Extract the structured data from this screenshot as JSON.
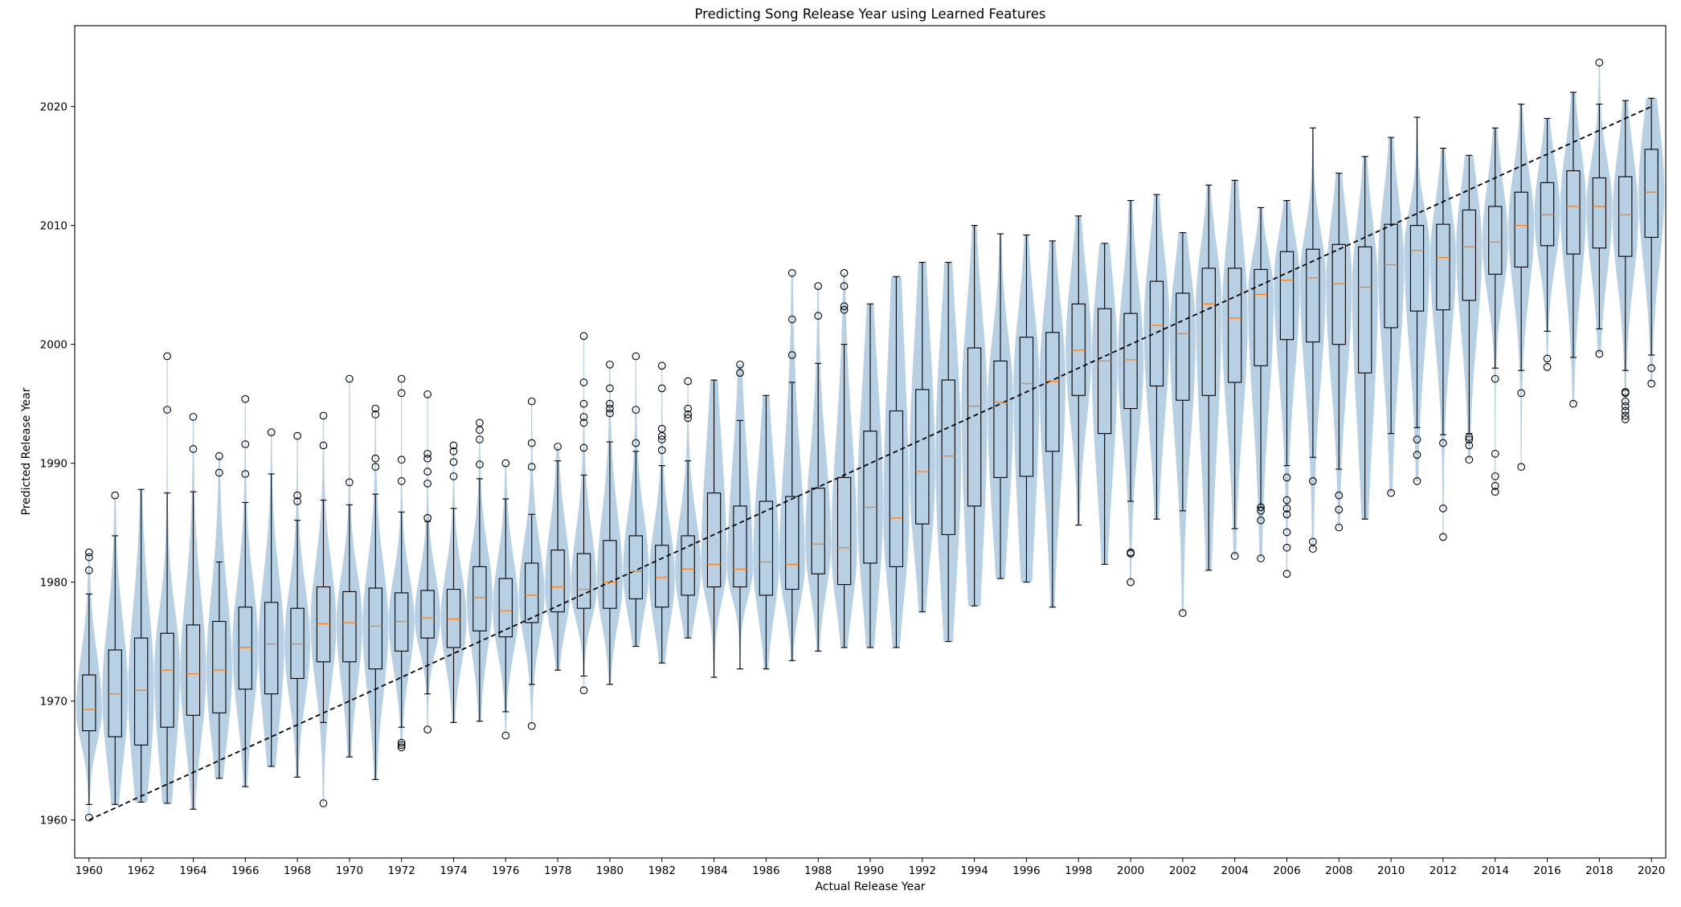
{
  "chart_data": {
    "type": "box-violin",
    "title": "Predicting Song Release Year using Learned Features",
    "xlabel": "Actual Release Year",
    "ylabel": "Predicted Release Year",
    "xlim": [
      1959.45,
      2020.55
    ],
    "ylim": [
      1956.8,
      2026.8
    ],
    "x_ticks": [
      1960,
      1962,
      1964,
      1966,
      1968,
      1970,
      1972,
      1974,
      1976,
      1978,
      1980,
      1982,
      1984,
      1986,
      1988,
      1990,
      1992,
      1994,
      1996,
      1998,
      2000,
      2002,
      2004,
      2006,
      2008,
      2010,
      2012,
      2014,
      2016,
      2018,
      2020
    ],
    "y_ticks": [
      1960,
      1970,
      1980,
      1990,
      2000,
      2010,
      2020
    ],
    "grid": false,
    "reference_line": {
      "from": [
        1960,
        1960
      ],
      "to": [
        2020,
        2020
      ],
      "style": "dashed",
      "color": "#000000"
    },
    "colors": {
      "violin": "#b8d0e4",
      "box": "#000000",
      "median": "#ff7f0e",
      "reference": "#000000"
    },
    "series": [
      {
        "year": 1960,
        "whisker_low": 1961.3,
        "q1": 1967.5,
        "median": 1969.3,
        "q3": 1972.2,
        "whisker_high": 1979.0,
        "outliers": [
          1960.2,
          1981.0,
          1982.1,
          1982.5
        ]
      },
      {
        "year": 1961,
        "whisker_low": 1961.3,
        "q1": 1967.0,
        "median": 1970.6,
        "q3": 1974.3,
        "whisker_high": 1983.9,
        "outliers": [
          1987.3
        ]
      },
      {
        "year": 1962,
        "whisker_low": 1961.5,
        "q1": 1966.3,
        "median": 1970.9,
        "q3": 1975.3,
        "whisker_high": 1987.8,
        "outliers": []
      },
      {
        "year": 1963,
        "whisker_low": 1961.4,
        "q1": 1967.8,
        "median": 1972.6,
        "q3": 1975.7,
        "whisker_high": 1987.5,
        "outliers": [
          1994.5,
          1999.0
        ]
      },
      {
        "year": 1964,
        "whisker_low": 1960.9,
        "q1": 1968.8,
        "median": 1972.3,
        "q3": 1976.4,
        "whisker_high": 1987.6,
        "outliers": [
          1991.2,
          1993.9
        ]
      },
      {
        "year": 1965,
        "whisker_low": 1963.5,
        "q1": 1969.0,
        "median": 1972.6,
        "q3": 1976.7,
        "whisker_high": 1981.7,
        "outliers": [
          1989.2,
          1990.6
        ]
      },
      {
        "year": 1966,
        "whisker_low": 1962.8,
        "q1": 1971.0,
        "median": 1974.5,
        "q3": 1977.9,
        "whisker_high": 1986.7,
        "outliers": [
          1989.1,
          1991.6,
          1995.4
        ]
      },
      {
        "year": 1967,
        "whisker_low": 1964.5,
        "q1": 1970.6,
        "median": 1974.8,
        "q3": 1978.3,
        "whisker_high": 1989.1,
        "outliers": [
          1992.6
        ]
      },
      {
        "year": 1968,
        "whisker_low": 1963.6,
        "q1": 1971.9,
        "median": 1974.8,
        "q3": 1977.8,
        "whisker_high": 1985.2,
        "outliers": [
          1986.8,
          1987.3,
          1992.3
        ]
      },
      {
        "year": 1969,
        "whisker_low": 1968.2,
        "q1": 1973.3,
        "median": 1976.5,
        "q3": 1979.6,
        "whisker_high": 1986.9,
        "outliers": [
          1961.4,
          1991.5,
          1994.0
        ]
      },
      {
        "year": 1970,
        "whisker_low": 1965.3,
        "q1": 1973.3,
        "median": 1976.6,
        "q3": 1979.2,
        "whisker_high": 1986.5,
        "outliers": [
          1988.4,
          1997.1
        ]
      },
      {
        "year": 1971,
        "whisker_low": 1963.4,
        "q1": 1972.7,
        "median": 1976.3,
        "q3": 1979.5,
        "whisker_high": 1987.4,
        "outliers": [
          1989.7,
          1990.4,
          1994.1,
          1994.6
        ]
      },
      {
        "year": 1972,
        "whisker_low": 1967.8,
        "q1": 1974.2,
        "median": 1976.7,
        "q3": 1979.1,
        "whisker_high": 1985.9,
        "outliers": [
          1966.1,
          1966.3,
          1966.5,
          1988.5,
          1990.3,
          1995.9,
          1997.1
        ]
      },
      {
        "year": 1973,
        "whisker_low": 1970.6,
        "q1": 1975.3,
        "median": 1977.0,
        "q3": 1979.3,
        "whisker_high": 1985.1,
        "outliers": [
          1967.6,
          1985.4,
          1988.3,
          1989.3,
          1990.4,
          1990.8,
          1995.8
        ]
      },
      {
        "year": 1974,
        "whisker_low": 1968.2,
        "q1": 1974.5,
        "median": 1976.9,
        "q3": 1979.4,
        "whisker_high": 1986.2,
        "outliers": [
          1988.9,
          1990.1,
          1991.0,
          1991.5
        ]
      },
      {
        "year": 1975,
        "whisker_low": 1968.3,
        "q1": 1975.9,
        "median": 1978.7,
        "q3": 1981.3,
        "whisker_high": 1988.7,
        "outliers": [
          1989.9,
          1992.0,
          1992.8,
          1993.4
        ]
      },
      {
        "year": 1976,
        "whisker_low": 1969.1,
        "q1": 1975.4,
        "median": 1977.6,
        "q3": 1980.3,
        "whisker_high": 1987.0,
        "outliers": [
          1967.1,
          1990.0
        ]
      },
      {
        "year": 1977,
        "whisker_low": 1971.4,
        "q1": 1976.6,
        "median": 1978.9,
        "q3": 1981.6,
        "whisker_high": 1985.7,
        "outliers": [
          1967.9,
          1989.7,
          1991.7,
          1995.2
        ]
      },
      {
        "year": 1978,
        "whisker_low": 1972.6,
        "q1": 1977.5,
        "median": 1979.6,
        "q3": 1982.7,
        "whisker_high": 1990.2,
        "outliers": [
          1991.4
        ]
      },
      {
        "year": 1979,
        "whisker_low": 1972.1,
        "q1": 1977.8,
        "median": 1979.4,
        "q3": 1982.4,
        "whisker_high": 1989.0,
        "outliers": [
          1970.9,
          1991.3,
          1993.4,
          1993.9,
          1995.0,
          1996.8,
          2000.7
        ]
      },
      {
        "year": 1980,
        "whisker_low": 1971.4,
        "q1": 1977.8,
        "median": 1980.0,
        "q3": 1983.5,
        "whisker_high": 1991.8,
        "outliers": [
          1994.2,
          1994.6,
          1995.0,
          1996.3,
          1998.3
        ]
      },
      {
        "year": 1981,
        "whisker_low": 1974.6,
        "q1": 1978.6,
        "median": 1980.9,
        "q3": 1983.9,
        "whisker_high": 1991.0,
        "outliers": [
          1991.7,
          1994.5,
          1999.0
        ]
      },
      {
        "year": 1982,
        "whisker_low": 1973.2,
        "q1": 1977.9,
        "median": 1980.4,
        "q3": 1983.1,
        "whisker_high": 1989.8,
        "outliers": [
          1991.1,
          1992.0,
          1992.3,
          1992.9,
          1996.3,
          1998.2
        ]
      },
      {
        "year": 1983,
        "whisker_low": 1975.3,
        "q1": 1978.9,
        "median": 1981.1,
        "q3": 1983.9,
        "whisker_high": 1990.2,
        "outliers": [
          1993.8,
          1994.1,
          1994.6,
          1996.9
        ]
      },
      {
        "year": 1984,
        "whisker_low": 1972.0,
        "q1": 1979.6,
        "median": 1981.5,
        "q3": 1987.5,
        "whisker_high": 1997.0,
        "outliers": []
      },
      {
        "year": 1985,
        "whisker_low": 1972.7,
        "q1": 1979.6,
        "median": 1981.1,
        "q3": 1986.4,
        "whisker_high": 1993.6,
        "outliers": [
          1997.6,
          1998.3
        ]
      },
      {
        "year": 1986,
        "whisker_low": 1972.7,
        "q1": 1978.9,
        "median": 1981.7,
        "q3": 1986.8,
        "whisker_high": 1995.7,
        "outliers": []
      },
      {
        "year": 1987,
        "whisker_low": 1973.4,
        "q1": 1979.4,
        "median": 1981.5,
        "q3": 1987.2,
        "whisker_high": 1996.8,
        "outliers": [
          1999.1,
          2002.1,
          2006.0
        ]
      },
      {
        "year": 1988,
        "whisker_low": 1974.2,
        "q1": 1980.7,
        "median": 1983.2,
        "q3": 1987.9,
        "whisker_high": 1998.4,
        "outliers": [
          2002.4,
          2004.9
        ]
      },
      {
        "year": 1989,
        "whisker_low": 1974.5,
        "q1": 1979.8,
        "median": 1982.9,
        "q3": 1988.8,
        "whisker_high": 2000.0,
        "outliers": [
          2002.9,
          2003.2,
          2004.9,
          2006.0
        ]
      },
      {
        "year": 1990,
        "whisker_low": 1974.5,
        "q1": 1981.6,
        "median": 1986.3,
        "q3": 1992.7,
        "whisker_high": 2003.4,
        "outliers": []
      },
      {
        "year": 1991,
        "whisker_low": 1974.5,
        "q1": 1981.3,
        "median": 1985.4,
        "q3": 1994.4,
        "whisker_high": 2005.7,
        "outliers": []
      },
      {
        "year": 1992,
        "whisker_low": 1977.5,
        "q1": 1984.9,
        "median": 1989.3,
        "q3": 1996.2,
        "whisker_high": 2006.9,
        "outliers": []
      },
      {
        "year": 1993,
        "whisker_low": 1975.0,
        "q1": 1984.0,
        "median": 1990.6,
        "q3": 1997.0,
        "whisker_high": 2006.9,
        "outliers": []
      },
      {
        "year": 1994,
        "whisker_low": 1978.0,
        "q1": 1986.4,
        "median": 1994.8,
        "q3": 1999.7,
        "whisker_high": 2010.0,
        "outliers": []
      },
      {
        "year": 1995,
        "whisker_low": 1980.3,
        "q1": 1988.8,
        "median": 1995.1,
        "q3": 1998.6,
        "whisker_high": 2009.3,
        "outliers": []
      },
      {
        "year": 1996,
        "whisker_low": 1980.0,
        "q1": 1988.9,
        "median": 1996.7,
        "q3": 2000.6,
        "whisker_high": 2009.2,
        "outliers": []
      },
      {
        "year": 1997,
        "whisker_low": 1977.9,
        "q1": 1991.0,
        "median": 1996.9,
        "q3": 2001.0,
        "whisker_high": 2008.7,
        "outliers": []
      },
      {
        "year": 1998,
        "whisker_low": 1984.8,
        "q1": 1995.7,
        "median": 1999.5,
        "q3": 2003.4,
        "whisker_high": 2010.8,
        "outliers": []
      },
      {
        "year": 1999,
        "whisker_low": 1981.5,
        "q1": 1992.5,
        "median": 1998.6,
        "q3": 2003.0,
        "whisker_high": 2008.5,
        "outliers": []
      },
      {
        "year": 2000,
        "whisker_low": 1986.8,
        "q1": 1994.6,
        "median": 1998.7,
        "q3": 2002.6,
        "whisker_high": 2012.1,
        "outliers": [
          1980.0,
          1982.4,
          1982.5
        ]
      },
      {
        "year": 2001,
        "whisker_low": 1985.3,
        "q1": 1996.5,
        "median": 2001.6,
        "q3": 2005.3,
        "whisker_high": 2012.6,
        "outliers": []
      },
      {
        "year": 2002,
        "whisker_low": 1986.0,
        "q1": 1995.3,
        "median": 2000.9,
        "q3": 2004.3,
        "whisker_high": 2009.4,
        "outliers": [
          1977.4
        ]
      },
      {
        "year": 2003,
        "whisker_low": 1981.0,
        "q1": 1995.7,
        "median": 2003.4,
        "q3": 2006.4,
        "whisker_high": 2013.4,
        "outliers": []
      },
      {
        "year": 2004,
        "whisker_low": 1984.5,
        "q1": 1996.8,
        "median": 2002.2,
        "q3": 2006.4,
        "whisker_high": 2013.8,
        "outliers": [
          1982.2
        ]
      },
      {
        "year": 2005,
        "whisker_low": 1986.3,
        "q1": 1998.2,
        "median": 2004.2,
        "q3": 2006.3,
        "whisker_high": 2011.5,
        "outliers": [
          1982.0,
          1985.2,
          1986.0,
          1986.3
        ]
      },
      {
        "year": 2006,
        "whisker_low": 1989.8,
        "q1": 2000.4,
        "median": 2005.4,
        "q3": 2007.8,
        "whisker_high": 2012.1,
        "outliers": [
          1980.7,
          1982.9,
          1984.2,
          1985.7,
          1986.2,
          1986.9,
          1988.8
        ]
      },
      {
        "year": 2007,
        "whisker_low": 1990.5,
        "q1": 2000.2,
        "median": 2005.6,
        "q3": 2008.0,
        "whisker_high": 2018.2,
        "outliers": [
          1982.8,
          1983.4,
          1988.5
        ]
      },
      {
        "year": 2008,
        "whisker_low": 1989.5,
        "q1": 2000.0,
        "median": 2005.1,
        "q3": 2008.4,
        "whisker_high": 2014.4,
        "outliers": [
          1984.6,
          1986.1,
          1987.3
        ]
      },
      {
        "year": 2009,
        "whisker_low": 1985.3,
        "q1": 1997.6,
        "median": 2004.8,
        "q3": 2008.2,
        "whisker_high": 2015.8,
        "outliers": []
      },
      {
        "year": 2010,
        "whisker_low": 1992.5,
        "q1": 2001.4,
        "median": 2006.7,
        "q3": 2010.1,
        "whisker_high": 2017.4,
        "outliers": [
          1987.5
        ]
      },
      {
        "year": 2011,
        "whisker_low": 1993.0,
        "q1": 2002.8,
        "median": 2007.9,
        "q3": 2010.0,
        "whisker_high": 2019.1,
        "outliers": [
          1988.5,
          1990.7,
          1992.0
        ]
      },
      {
        "year": 2012,
        "whisker_low": 1992.4,
        "q1": 2002.9,
        "median": 2007.3,
        "q3": 2010.1,
        "whisker_high": 2016.5,
        "outliers": [
          1983.8,
          1986.2,
          1991.7
        ]
      },
      {
        "year": 2013,
        "whisker_low": 1992.5,
        "q1": 2003.7,
        "median": 2008.2,
        "q3": 2011.3,
        "whisker_high": 2015.9,
        "outliers": [
          1990.3,
          1991.5,
          1992.0,
          1992.2
        ]
      },
      {
        "year": 2014,
        "whisker_low": 1998.0,
        "q1": 2005.9,
        "median": 2008.6,
        "q3": 2011.6,
        "whisker_high": 2018.2,
        "outliers": [
          1987.6,
          1988.1,
          1988.9,
          1990.8,
          1997.1
        ]
      },
      {
        "year": 2015,
        "whisker_low": 1997.8,
        "q1": 2006.5,
        "median": 2010.0,
        "q3": 2012.8,
        "whisker_high": 2020.2,
        "outliers": [
          1989.7,
          1995.9
        ]
      },
      {
        "year": 2016,
        "whisker_low": 2001.1,
        "q1": 2008.3,
        "median": 2010.9,
        "q3": 2013.6,
        "whisker_high": 2019.0,
        "outliers": [
          1998.1,
          1998.8
        ]
      },
      {
        "year": 2017,
        "whisker_low": 1998.9,
        "q1": 2007.6,
        "median": 2011.6,
        "q3": 2014.6,
        "whisker_high": 2021.2,
        "outliers": [
          1995.0
        ]
      },
      {
        "year": 2018,
        "whisker_low": 2001.3,
        "q1": 2008.1,
        "median": 2011.6,
        "q3": 2014.0,
        "whisker_high": 2020.2,
        "outliers": [
          1999.2,
          2023.7
        ]
      },
      {
        "year": 2019,
        "whisker_low": 1997.8,
        "q1": 2007.4,
        "median": 2010.9,
        "q3": 2014.1,
        "whisker_high": 2020.5,
        "outliers": [
          1993.7,
          1994.0,
          1994.4,
          1994.8,
          1995.2,
          1995.9,
          1996.0
        ]
      },
      {
        "year": 2020,
        "whisker_low": 1999.1,
        "q1": 2009.0,
        "median": 2012.8,
        "q3": 2016.4,
        "whisker_high": 2020.7,
        "outliers": [
          1996.7,
          1998.0
        ]
      }
    ]
  }
}
